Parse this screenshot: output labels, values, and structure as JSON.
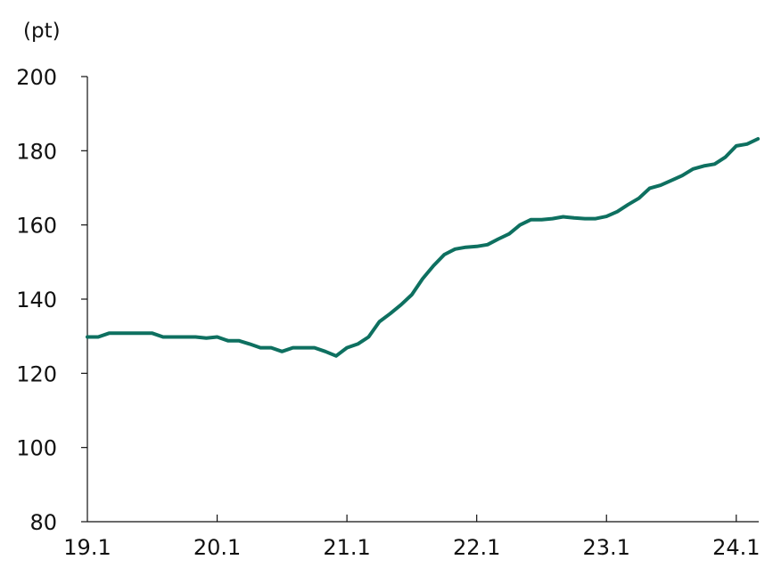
{
  "chart_data": {
    "type": "line",
    "title": "",
    "ylabel": "(pt)",
    "xlabel": "",
    "ylim": [
      80,
      200
    ],
    "yticks": [
      80,
      100,
      120,
      140,
      160,
      180,
      200
    ],
    "xticks": [
      {
        "label": "19.1",
        "month_index": 0
      },
      {
        "label": "20.1",
        "month_index": 12
      },
      {
        "label": "21.1",
        "month_index": 24
      },
      {
        "label": "22.1",
        "month_index": 36
      },
      {
        "label": "23.1",
        "month_index": 48
      },
      {
        "label": "24.1",
        "month_index": 60
      }
    ],
    "x_start": "2019-01",
    "x_end": "2024-03",
    "grid": false,
    "series": [
      {
        "color": "#0e7060",
        "x": [
          "2019-01",
          "2019-02",
          "2019-03",
          "2019-04",
          "2019-05",
          "2019-06",
          "2019-07",
          "2019-08",
          "2019-09",
          "2019-10",
          "2019-11",
          "2019-12",
          "2020-01",
          "2020-02",
          "2020-03",
          "2020-04",
          "2020-05",
          "2020-06",
          "2020-07",
          "2020-08",
          "2020-09",
          "2020-10",
          "2020-11",
          "2020-12",
          "2021-01",
          "2021-02",
          "2021-03",
          "2021-04",
          "2021-05",
          "2021-06",
          "2021-07",
          "2021-08",
          "2021-09",
          "2021-10",
          "2021-11",
          "2021-12",
          "2022-01",
          "2022-02",
          "2022-03",
          "2022-04",
          "2022-05",
          "2022-06",
          "2022-07",
          "2022-08",
          "2022-09",
          "2022-10",
          "2022-11",
          "2022-12",
          "2023-01",
          "2023-02",
          "2023-03",
          "2023-04",
          "2023-05",
          "2023-06",
          "2023-07",
          "2023-08",
          "2023-09",
          "2023-10",
          "2023-11",
          "2023-12",
          "2024-01",
          "2024-02",
          "2024-03"
        ],
        "values": [
          129.8,
          129.8,
          130.8,
          130.8,
          130.8,
          130.8,
          130.8,
          129.8,
          129.8,
          129.8,
          129.8,
          129.5,
          129.8,
          128.8,
          128.8,
          127.9,
          126.9,
          126.9,
          125.9,
          126.9,
          126.9,
          126.9,
          125.9,
          124.7,
          126.9,
          127.9,
          129.8,
          133.9,
          136.1,
          138.5,
          141.2,
          145.5,
          149.0,
          152.0,
          153.5,
          154.0,
          154.2,
          154.7,
          156.2,
          157.6,
          160.0,
          161.4,
          161.4,
          161.7,
          162.2,
          161.9,
          161.7,
          161.7,
          162.3,
          163.6,
          165.5,
          167.2,
          169.9,
          170.7,
          172.0,
          173.3,
          175.1,
          175.9,
          176.4,
          178.3,
          181.3,
          181.8,
          183.2
        ]
      }
    ]
  }
}
